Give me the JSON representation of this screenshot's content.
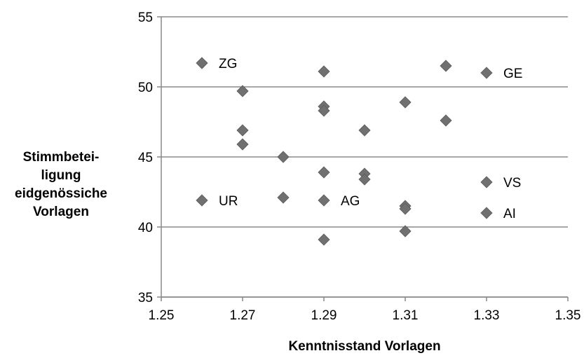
{
  "chart_data": {
    "type": "scatter",
    "xlabel": "Kenntnisstand Vorlagen",
    "ylabel_lines": [
      "Stimmbetei-",
      "ligung",
      "eidgenössiche",
      "Vorlagen"
    ],
    "xlim": [
      1.25,
      1.35
    ],
    "ylim": [
      35,
      55
    ],
    "xticks": [
      "1.25",
      "1.27",
      "1.29",
      "1.31",
      "1.33",
      "1.35"
    ],
    "yticks": [
      "35",
      "40",
      "45",
      "50",
      "55"
    ],
    "grid": "horizontal",
    "marker": "diamond",
    "marker_color": "#707070",
    "points": [
      {
        "x": 1.26,
        "y": 51.7,
        "label": "ZG"
      },
      {
        "x": 1.26,
        "y": 41.9,
        "label": "UR"
      },
      {
        "x": 1.27,
        "y": 49.7,
        "label": ""
      },
      {
        "x": 1.27,
        "y": 46.9,
        "label": ""
      },
      {
        "x": 1.27,
        "y": 45.9,
        "label": ""
      },
      {
        "x": 1.28,
        "y": 45.0,
        "label": ""
      },
      {
        "x": 1.28,
        "y": 42.1,
        "label": ""
      },
      {
        "x": 1.29,
        "y": 51.1,
        "label": ""
      },
      {
        "x": 1.29,
        "y": 48.6,
        "label": ""
      },
      {
        "x": 1.29,
        "y": 48.3,
        "label": ""
      },
      {
        "x": 1.29,
        "y": 43.9,
        "label": ""
      },
      {
        "x": 1.29,
        "y": 41.9,
        "label": "AG"
      },
      {
        "x": 1.29,
        "y": 39.1,
        "label": ""
      },
      {
        "x": 1.3,
        "y": 46.9,
        "label": ""
      },
      {
        "x": 1.3,
        "y": 43.8,
        "label": ""
      },
      {
        "x": 1.3,
        "y": 43.4,
        "label": ""
      },
      {
        "x": 1.31,
        "y": 48.9,
        "label": ""
      },
      {
        "x": 1.31,
        "y": 41.5,
        "label": ""
      },
      {
        "x": 1.31,
        "y": 41.3,
        "label": ""
      },
      {
        "x": 1.31,
        "y": 39.7,
        "label": ""
      },
      {
        "x": 1.32,
        "y": 51.5,
        "label": ""
      },
      {
        "x": 1.32,
        "y": 47.6,
        "label": ""
      },
      {
        "x": 1.33,
        "y": 51.0,
        "label": "GE"
      },
      {
        "x": 1.33,
        "y": 43.2,
        "label": "VS"
      },
      {
        "x": 1.33,
        "y": 41.0,
        "label": "AI"
      }
    ]
  }
}
